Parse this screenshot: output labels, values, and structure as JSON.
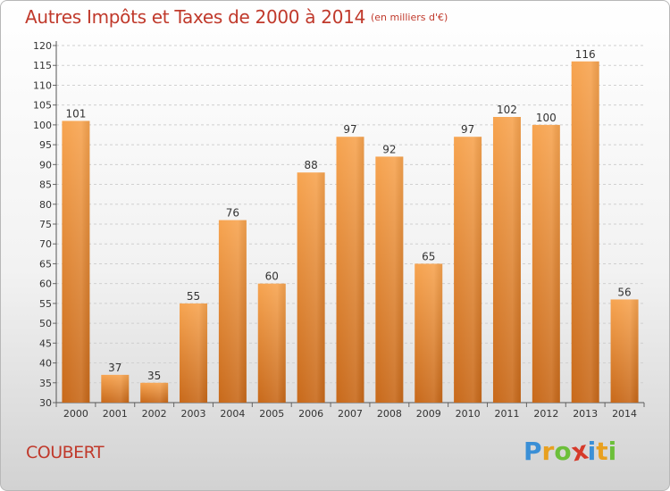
{
  "title": "Autres Impôts et Taxes de 2000 à 2014",
  "unit": "(en milliers d'€)",
  "commune": "COUBERT",
  "logo": {
    "letters": [
      "P",
      "r",
      "o",
      "x",
      "i",
      "t",
      "i"
    ],
    "colors": [
      "#3a8fd6",
      "#e8a020",
      "#6cbf3a",
      "#d63a2a",
      "#3a8fd6",
      "#e8a020",
      "#6cbf3a"
    ]
  },
  "chart_data": {
    "type": "bar",
    "categories": [
      "2000",
      "2001",
      "2002",
      "2003",
      "2004",
      "2005",
      "2006",
      "2007",
      "2008",
      "2009",
      "2010",
      "2011",
      "2012",
      "2013",
      "2014"
    ],
    "values": [
      101,
      37,
      35,
      55,
      76,
      60,
      88,
      97,
      92,
      65,
      97,
      102,
      100,
      116,
      56
    ],
    "ylim": [
      30,
      120
    ],
    "yticks": [
      30,
      35,
      40,
      45,
      50,
      55,
      60,
      65,
      70,
      75,
      80,
      85,
      90,
      95,
      100,
      105,
      110,
      115,
      120
    ],
    "grid": true,
    "bar_color": "#f08a24"
  }
}
